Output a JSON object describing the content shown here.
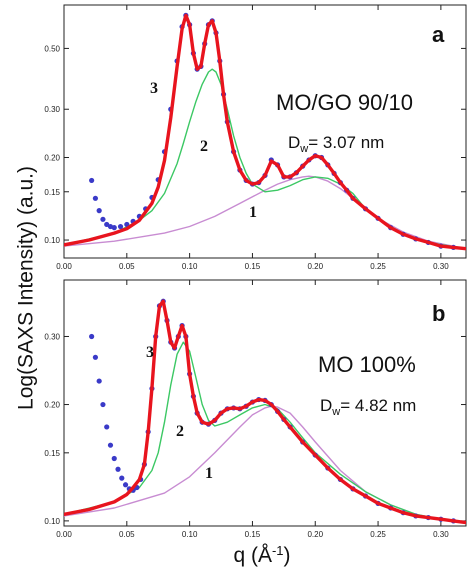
{
  "figure": {
    "ylabel": "Log(SAXS Intensity) (a.u.)",
    "xlabel": "q (Å",
    "xlabel_exp": "-1",
    "xlabel_close": ")"
  },
  "colors": {
    "data_points": "#3a3ac8",
    "fit_total": "#e8141e",
    "fit_peaks": "#3cc864",
    "fit_background": "#c88cd2"
  },
  "chart_data": [
    {
      "type": "scatter",
      "panel": "a",
      "title": "MO/GO 90/10",
      "dw_label": "D",
      "dw_sub": "w",
      "dw_value": "= 3.07 nm",
      "scale": "log-y",
      "xlim": [
        0.0,
        0.32
      ],
      "ylim": [
        0.086,
        0.72
      ],
      "x_ticks": [
        "0.00",
        "0.05",
        "0.10",
        "0.15",
        "0.20",
        "0.25",
        "0.30"
      ],
      "y_ticks": [
        "0.10",
        "0.15",
        "0.20",
        "0.30",
        "0.50"
      ],
      "curve_labels": [
        "1",
        "2",
        "3"
      ],
      "series": [
        {
          "role": "data",
          "x": [
            0.022,
            0.025,
            0.028,
            0.031,
            0.034,
            0.037,
            0.04,
            0.045,
            0.05,
            0.055,
            0.06,
            0.065,
            0.07,
            0.075,
            0.08,
            0.085,
            0.09,
            0.094,
            0.097,
            0.1,
            0.103,
            0.106,
            0.109,
            0.112,
            0.115,
            0.118,
            0.121,
            0.124,
            0.127,
            0.13,
            0.135,
            0.14,
            0.145,
            0.15,
            0.155,
            0.16,
            0.165,
            0.17,
            0.175,
            0.18,
            0.185,
            0.19,
            0.195,
            0.2,
            0.205,
            0.21,
            0.215,
            0.22,
            0.225,
            0.23,
            0.24,
            0.25,
            0.26,
            0.27,
            0.28,
            0.29,
            0.3,
            0.31
          ],
          "y": [
            0.165,
            0.142,
            0.128,
            0.119,
            0.114,
            0.112,
            0.111,
            0.112,
            0.114,
            0.117,
            0.122,
            0.13,
            0.143,
            0.166,
            0.21,
            0.3,
            0.45,
            0.6,
            0.66,
            0.61,
            0.48,
            0.42,
            0.43,
            0.52,
            0.61,
            0.63,
            0.57,
            0.45,
            0.34,
            0.27,
            0.21,
            0.18,
            0.165,
            0.16,
            0.162,
            0.172,
            0.196,
            0.188,
            0.17,
            0.17,
            0.176,
            0.186,
            0.196,
            0.203,
            0.2,
            0.188,
            0.175,
            0.162,
            0.152,
            0.142,
            0.13,
            0.12,
            0.111,
            0.105,
            0.101,
            0.098,
            0.095,
            0.094
          ]
        },
        {
          "role": "fit-total",
          "label": "3",
          "x": [
            0.0,
            0.02,
            0.04,
            0.05,
            0.06,
            0.07,
            0.075,
            0.08,
            0.085,
            0.09,
            0.094,
            0.097,
            0.1,
            0.103,
            0.106,
            0.109,
            0.112,
            0.115,
            0.118,
            0.121,
            0.124,
            0.127,
            0.13,
            0.135,
            0.14,
            0.145,
            0.15,
            0.155,
            0.16,
            0.165,
            0.17,
            0.175,
            0.18,
            0.185,
            0.19,
            0.195,
            0.2,
            0.205,
            0.21,
            0.215,
            0.22,
            0.225,
            0.23,
            0.24,
            0.25,
            0.26,
            0.27,
            0.28,
            0.29,
            0.3,
            0.31,
            0.32
          ],
          "y": [
            0.096,
            0.1,
            0.106,
            0.11,
            0.118,
            0.136,
            0.156,
            0.195,
            0.28,
            0.43,
            0.59,
            0.66,
            0.61,
            0.48,
            0.42,
            0.43,
            0.52,
            0.61,
            0.63,
            0.57,
            0.45,
            0.34,
            0.27,
            0.21,
            0.18,
            0.165,
            0.16,
            0.162,
            0.172,
            0.194,
            0.188,
            0.17,
            0.17,
            0.176,
            0.186,
            0.196,
            0.203,
            0.2,
            0.188,
            0.175,
            0.162,
            0.152,
            0.142,
            0.13,
            0.12,
            0.111,
            0.105,
            0.101,
            0.098,
            0.095,
            0.094,
            0.093
          ]
        },
        {
          "role": "fit-peaks",
          "label": "2",
          "x": [
            0.0,
            0.04,
            0.06,
            0.07,
            0.08,
            0.09,
            0.095,
            0.1,
            0.105,
            0.11,
            0.115,
            0.118,
            0.121,
            0.125,
            0.13,
            0.135,
            0.14,
            0.145,
            0.15,
            0.16,
            0.17,
            0.18,
            0.19,
            0.2,
            0.21,
            0.22,
            0.23,
            0.24,
            0.25,
            0.27,
            0.29,
            0.32
          ],
          "y": [
            0.096,
            0.106,
            0.118,
            0.128,
            0.148,
            0.19,
            0.225,
            0.27,
            0.32,
            0.37,
            0.41,
            0.42,
            0.41,
            0.37,
            0.3,
            0.24,
            0.2,
            0.175,
            0.16,
            0.15,
            0.152,
            0.158,
            0.166,
            0.17,
            0.168,
            0.16,
            0.148,
            0.13,
            0.12,
            0.105,
            0.098,
            0.093
          ]
        },
        {
          "role": "fit-background",
          "label": "1",
          "x": [
            0.0,
            0.04,
            0.08,
            0.1,
            0.12,
            0.14,
            0.16,
            0.17,
            0.18,
            0.19,
            0.195,
            0.2,
            0.21,
            0.22,
            0.23,
            0.24,
            0.25,
            0.27,
            0.29,
            0.32
          ],
          "y": [
            0.095,
            0.099,
            0.106,
            0.112,
            0.122,
            0.136,
            0.152,
            0.16,
            0.166,
            0.17,
            0.171,
            0.17,
            0.164,
            0.154,
            0.142,
            0.13,
            0.12,
            0.107,
            0.099,
            0.093
          ]
        }
      ]
    },
    {
      "type": "scatter",
      "panel": "b",
      "title": "MO 100%",
      "dw_label": "D",
      "dw_sub": "w",
      "dw_value": "= 4.82 nm",
      "scale": "log-y",
      "xlim": [
        0.0,
        0.32
      ],
      "ylim": [
        0.097,
        0.42
      ],
      "x_ticks": [
        "0.00",
        "0.05",
        "0.10",
        "0.15",
        "0.20",
        "0.25",
        "0.30"
      ],
      "y_ticks": [
        "0.10",
        "0.15",
        "0.20",
        "0.30"
      ],
      "curve_labels": [
        "1",
        "2",
        "3"
      ],
      "series": [
        {
          "role": "data",
          "x": [
            0.022,
            0.025,
            0.028,
            0.031,
            0.034,
            0.037,
            0.04,
            0.043,
            0.046,
            0.049,
            0.052,
            0.055,
            0.058,
            0.061,
            0.064,
            0.067,
            0.07,
            0.073,
            0.076,
            0.079,
            0.082,
            0.085,
            0.088,
            0.091,
            0.094,
            0.097,
            0.1,
            0.103,
            0.106,
            0.11,
            0.115,
            0.12,
            0.125,
            0.13,
            0.135,
            0.14,
            0.145,
            0.15,
            0.155,
            0.16,
            0.165,
            0.17,
            0.175,
            0.18,
            0.19,
            0.2,
            0.21,
            0.22,
            0.23,
            0.24,
            0.25,
            0.26,
            0.27,
            0.28,
            0.29,
            0.3,
            0.31
          ],
          "y": [
            0.3,
            0.265,
            0.23,
            0.2,
            0.175,
            0.157,
            0.145,
            0.136,
            0.129,
            0.124,
            0.121,
            0.12,
            0.122,
            0.128,
            0.14,
            0.17,
            0.22,
            0.3,
            0.36,
            0.37,
            0.33,
            0.29,
            0.28,
            0.3,
            0.32,
            0.3,
            0.24,
            0.21,
            0.19,
            0.18,
            0.178,
            0.182,
            0.19,
            0.195,
            0.196,
            0.195,
            0.198,
            0.203,
            0.206,
            0.205,
            0.2,
            0.192,
            0.183,
            0.175,
            0.16,
            0.148,
            0.137,
            0.128,
            0.121,
            0.116,
            0.111,
            0.108,
            0.105,
            0.103,
            0.102,
            0.101,
            0.1
          ]
        },
        {
          "role": "fit-total",
          "label": "3",
          "x": [
            0.0,
            0.02,
            0.04,
            0.05,
            0.055,
            0.06,
            0.064,
            0.067,
            0.07,
            0.073,
            0.076,
            0.079,
            0.082,
            0.085,
            0.088,
            0.091,
            0.094,
            0.097,
            0.1,
            0.103,
            0.106,
            0.11,
            0.115,
            0.12,
            0.125,
            0.13,
            0.135,
            0.14,
            0.145,
            0.15,
            0.155,
            0.16,
            0.165,
            0.17,
            0.175,
            0.18,
            0.19,
            0.2,
            0.21,
            0.22,
            0.23,
            0.24,
            0.25,
            0.26,
            0.27,
            0.28,
            0.29,
            0.3,
            0.31,
            0.32
          ],
          "y": [
            0.104,
            0.107,
            0.112,
            0.117,
            0.122,
            0.128,
            0.14,
            0.17,
            0.22,
            0.3,
            0.36,
            0.37,
            0.33,
            0.29,
            0.28,
            0.3,
            0.32,
            0.3,
            0.24,
            0.21,
            0.19,
            0.18,
            0.178,
            0.182,
            0.19,
            0.195,
            0.196,
            0.195,
            0.198,
            0.203,
            0.206,
            0.205,
            0.2,
            0.192,
            0.183,
            0.175,
            0.16,
            0.148,
            0.137,
            0.128,
            0.121,
            0.116,
            0.111,
            0.108,
            0.105,
            0.103,
            0.102,
            0.101,
            0.1,
            0.099
          ]
        },
        {
          "role": "fit-peaks",
          "label": "2",
          "x": [
            0.0,
            0.04,
            0.06,
            0.07,
            0.075,
            0.08,
            0.085,
            0.09,
            0.095,
            0.1,
            0.105,
            0.11,
            0.115,
            0.12,
            0.13,
            0.14,
            0.15,
            0.16,
            0.17,
            0.18,
            0.19,
            0.2,
            0.22,
            0.24,
            0.26,
            0.28,
            0.3,
            0.32
          ],
          "y": [
            0.104,
            0.112,
            0.122,
            0.135,
            0.15,
            0.18,
            0.225,
            0.27,
            0.29,
            0.275,
            0.235,
            0.2,
            0.182,
            0.176,
            0.18,
            0.188,
            0.196,
            0.2,
            0.195,
            0.18,
            0.164,
            0.15,
            0.132,
            0.119,
            0.11,
            0.104,
            0.101,
            0.099
          ]
        },
        {
          "role": "fit-background",
          "label": "1",
          "x": [
            0.0,
            0.04,
            0.08,
            0.1,
            0.12,
            0.14,
            0.15,
            0.16,
            0.165,
            0.17,
            0.18,
            0.19,
            0.2,
            0.22,
            0.24,
            0.26,
            0.28,
            0.3,
            0.32
          ],
          "y": [
            0.103,
            0.108,
            0.118,
            0.13,
            0.15,
            0.175,
            0.188,
            0.196,
            0.198,
            0.197,
            0.19,
            0.175,
            0.16,
            0.135,
            0.119,
            0.11,
            0.104,
            0.101,
            0.099
          ]
        }
      ]
    }
  ]
}
